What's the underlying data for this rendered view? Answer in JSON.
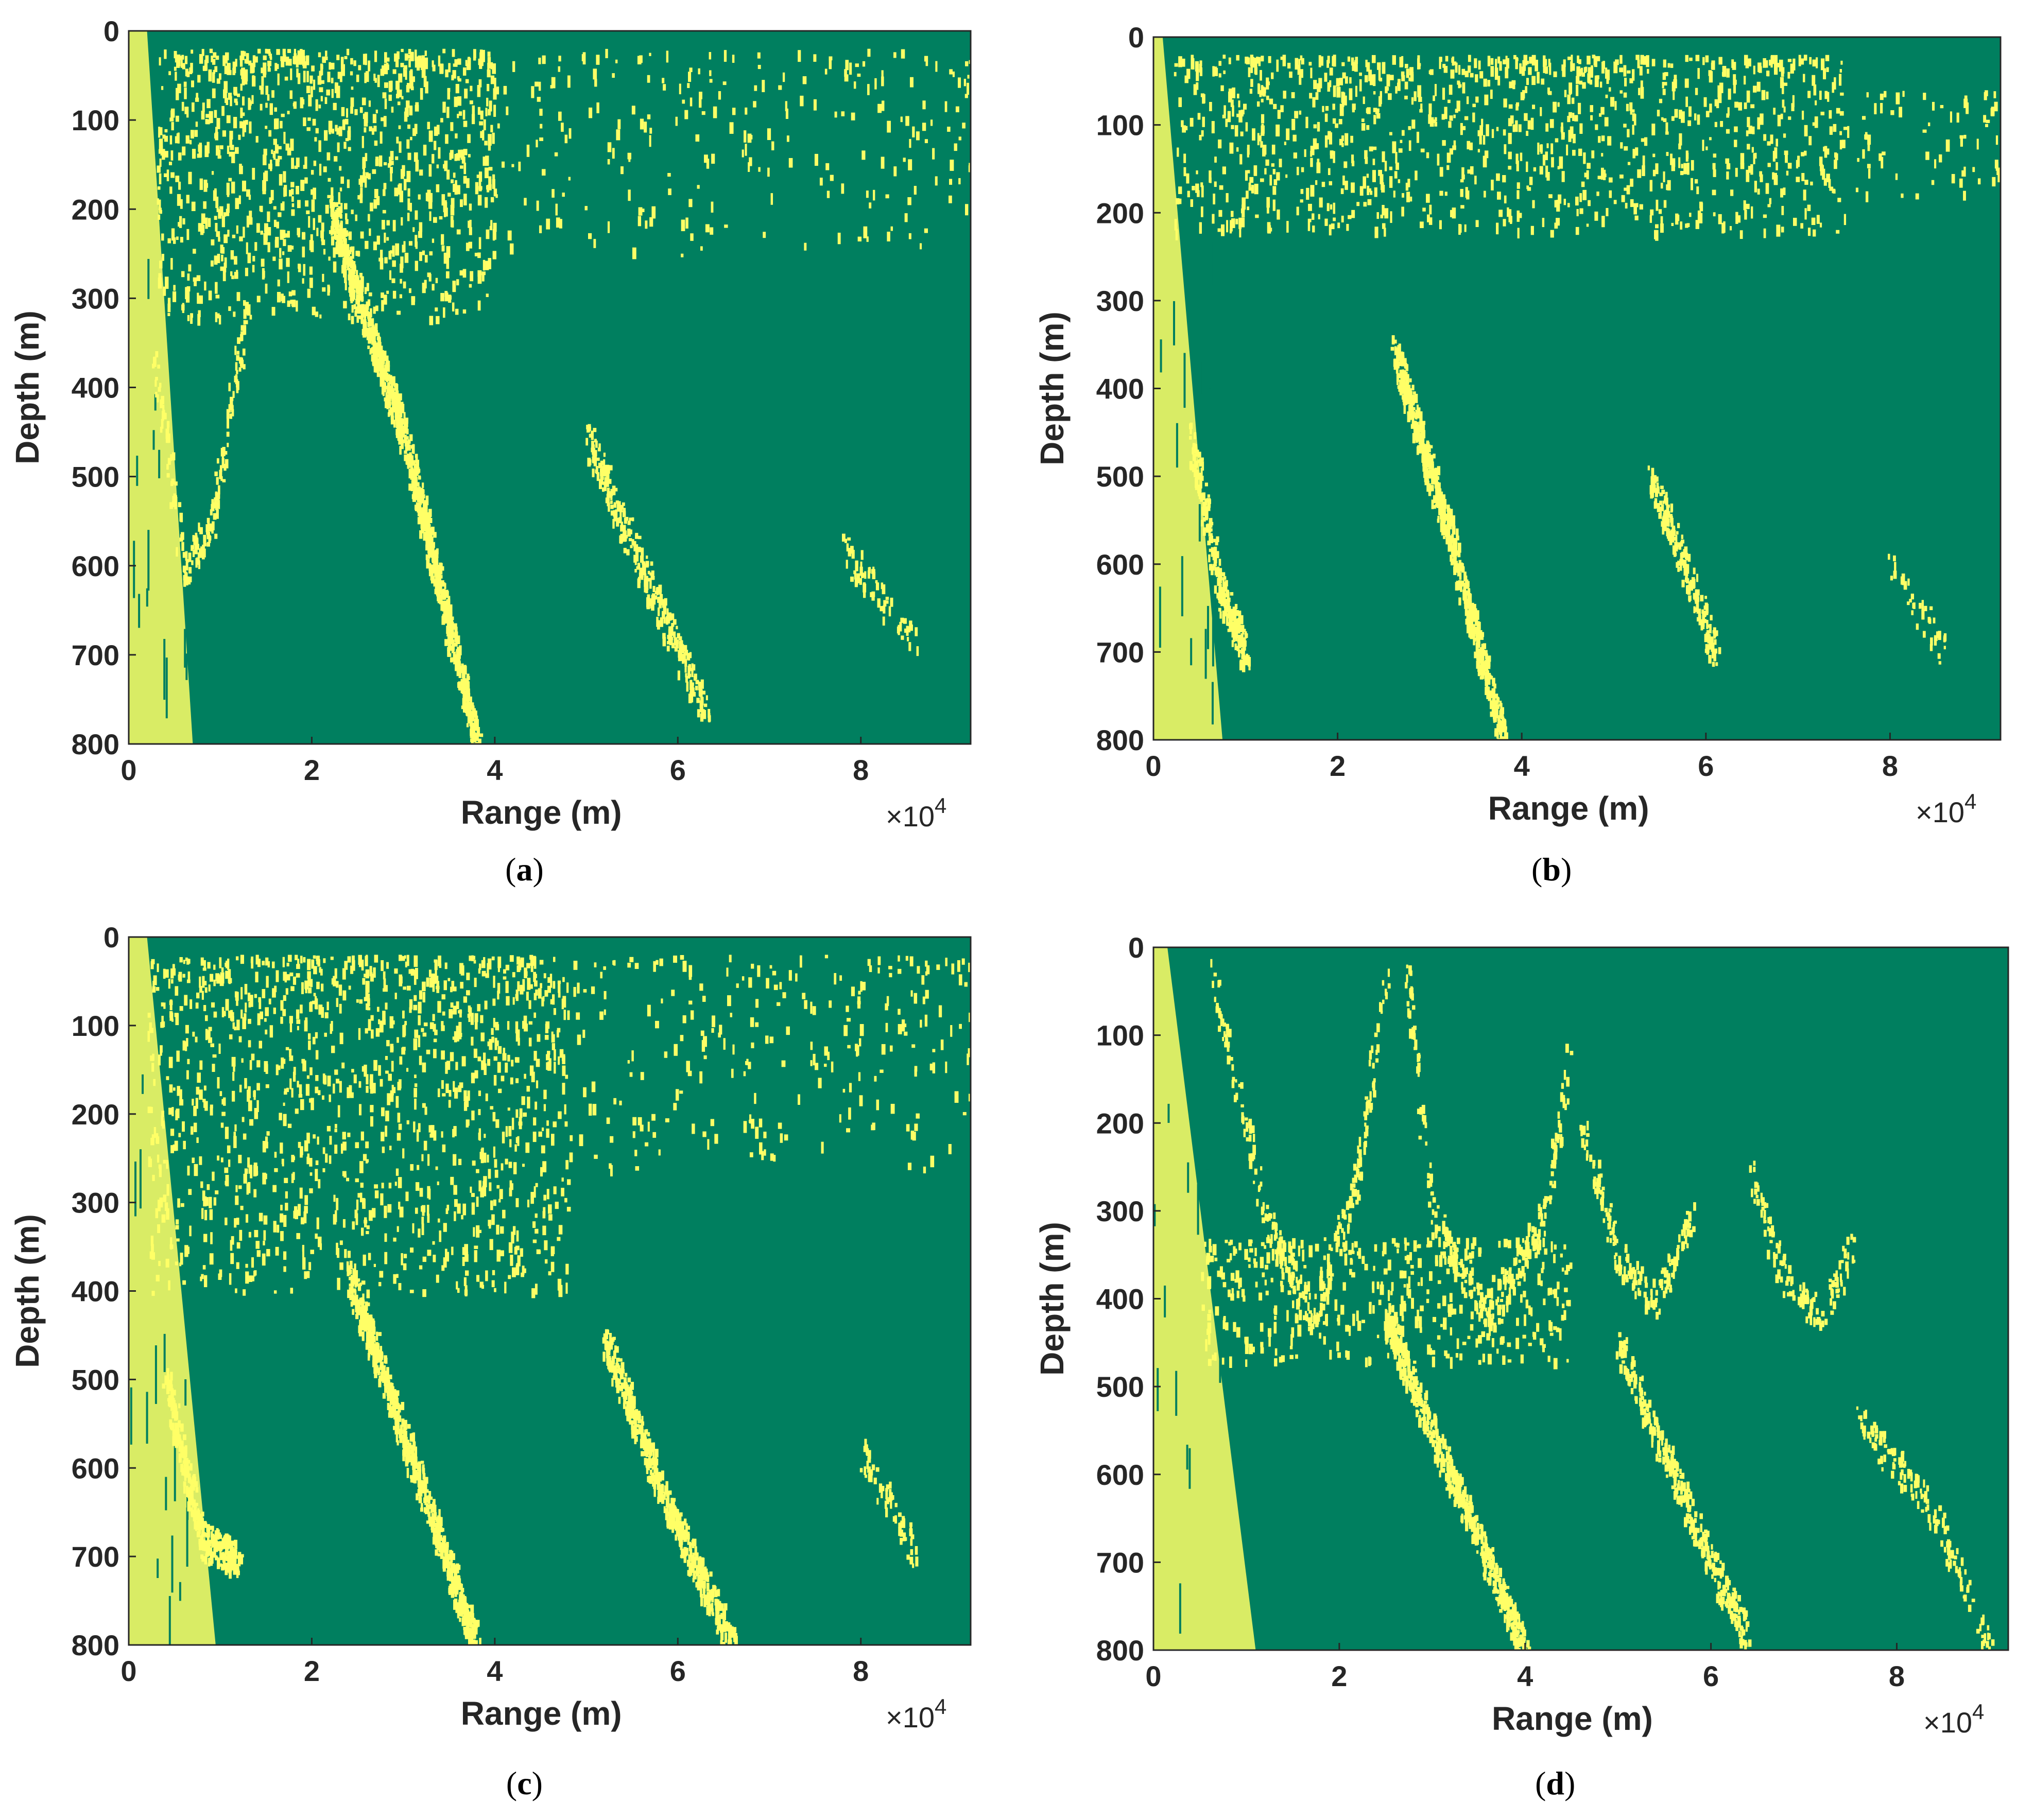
{
  "colors": {
    "background_class": "#007F5F",
    "detected_class": "#FFFF66",
    "axes": "#262626"
  },
  "chart_data": [
    {
      "type": "heatmap",
      "panel_label": "(a)",
      "panel_letter": "a",
      "xlabel": "Range (m)",
      "ylabel": "Depth (m)",
      "x_exponent_label": "×10",
      "x_exponent": "4",
      "xlim": [
        0,
        92000
      ],
      "ylim": [
        0,
        800
      ],
      "y_reversed": true,
      "xticks": [
        0,
        20000,
        40000,
        60000,
        80000
      ],
      "xtick_labels": [
        "0",
        "2",
        "4",
        "6",
        "8"
      ],
      "yticks": [
        0,
        100,
        200,
        300,
        400,
        500,
        600,
        700,
        800
      ],
      "ytick_labels": [
        "0",
        "100",
        "200",
        "300",
        "400",
        "500",
        "600",
        "700",
        "800"
      ],
      "binary_classes": [
        "background",
        "detected"
      ],
      "features": [
        {
          "kind": "band",
          "name": "left-wedge",
          "range": [
            [
              0,
              0
            ],
            [
              2000,
              0
            ],
            [
              7000,
              800
            ],
            [
              0,
              800
            ]
          ],
          "density": 0.7
        },
        {
          "kind": "surface",
          "depth_range": [
            20,
            320
          ],
          "range": [
            3000,
            40000
          ],
          "density": 0.55
        },
        {
          "kind": "surface",
          "depth_range": [
            20,
            250
          ],
          "range": [
            40000,
            92000
          ],
          "density": 0.12
        },
        {
          "kind": "arc",
          "points": [
            [
              2500,
              350
            ],
            [
              6000,
              600
            ],
            [
              9000,
              550
            ],
            [
              13000,
              300
            ]
          ],
          "density": 0.5
        },
        {
          "kind": "line",
          "points": [
            [
              22000,
              200
            ],
            [
              30000,
              450
            ],
            [
              38000,
              800
            ]
          ],
          "density": 0.55
        },
        {
          "kind": "line",
          "points": [
            [
              50000,
              450
            ],
            [
              56000,
              600
            ],
            [
              63000,
              760
            ]
          ],
          "density": 0.3
        },
        {
          "kind": "line",
          "points": [
            [
              78000,
              580
            ],
            [
              86000,
              680
            ]
          ],
          "density": 0.15
        }
      ]
    },
    {
      "type": "heatmap",
      "panel_label": "(b)",
      "panel_letter": "b",
      "xlabel": "Range (m)",
      "ylabel": "Depth (m)",
      "x_exponent_label": "×10",
      "x_exponent": "4",
      "xlim": [
        0,
        92000
      ],
      "ylim": [
        0,
        800
      ],
      "y_reversed": true,
      "xticks": [
        0,
        20000,
        40000,
        60000,
        80000
      ],
      "xtick_labels": [
        "0",
        "2",
        "4",
        "6",
        "8"
      ],
      "yticks": [
        0,
        100,
        200,
        300,
        400,
        500,
        600,
        700,
        800
      ],
      "ytick_labels": [
        "0",
        "100",
        "200",
        "300",
        "400",
        "500",
        "600",
        "700",
        "800"
      ],
      "binary_classes": [
        "background",
        "detected"
      ],
      "features": [
        {
          "kind": "band",
          "name": "left-wedge",
          "range": [
            [
              0,
              0
            ],
            [
              1000,
              0
            ],
            [
              7500,
              800
            ],
            [
              0,
              800
            ]
          ],
          "density": 0.6
        },
        {
          "kind": "surface",
          "depth_range": [
            20,
            220
          ],
          "range": [
            2000,
            75000
          ],
          "density": 0.45
        },
        {
          "kind": "surface",
          "depth_range": [
            60,
            180
          ],
          "range": [
            75000,
            92000
          ],
          "density": 0.2
        },
        {
          "kind": "arc",
          "points": [
            [
              4000,
              450
            ],
            [
              7000,
              620
            ],
            [
              10000,
              700
            ]
          ],
          "density": 0.35
        },
        {
          "kind": "line",
          "points": [
            [
              26000,
              350
            ],
            [
              32000,
              560
            ],
            [
              38000,
              800
            ]
          ],
          "density": 0.5
        },
        {
          "kind": "line",
          "points": [
            [
              54000,
              500
            ],
            [
              58000,
              610
            ],
            [
              61000,
              700
            ]
          ],
          "density": 0.3
        },
        {
          "kind": "line",
          "points": [
            [
              80000,
              600
            ],
            [
              86000,
              700
            ]
          ],
          "density": 0.1
        }
      ]
    },
    {
      "type": "heatmap",
      "panel_label": "(c)",
      "panel_letter": "c",
      "xlabel": "Range (m)",
      "ylabel": "Depth (m)",
      "x_exponent_label": "×10",
      "x_exponent": "4",
      "xlim": [
        0,
        92000
      ],
      "ylim": [
        0,
        800
      ],
      "y_reversed": true,
      "xticks": [
        0,
        20000,
        40000,
        60000,
        80000
      ],
      "xtick_labels": [
        "0",
        "2",
        "4",
        "6",
        "8"
      ],
      "yticks": [
        0,
        100,
        200,
        300,
        400,
        500,
        600,
        700,
        800
      ],
      "ytick_labels": [
        "0",
        "100",
        "200",
        "300",
        "400",
        "500",
        "600",
        "700",
        "800"
      ],
      "binary_classes": [
        "background",
        "detected"
      ],
      "features": [
        {
          "kind": "band",
          "name": "left-wedge",
          "range": [
            [
              0,
              0
            ],
            [
              2000,
              0
            ],
            [
              9500,
              800
            ],
            [
              0,
              800
            ]
          ],
          "density": 0.65
        },
        {
          "kind": "surface",
          "depth_range": [
            20,
            400
          ],
          "range": [
            2000,
            48000
          ],
          "density": 0.42
        },
        {
          "kind": "surface",
          "depth_range": [
            20,
            260
          ],
          "range": [
            48000,
            92000
          ],
          "density": 0.14
        },
        {
          "kind": "arc",
          "points": [
            [
              4000,
              500
            ],
            [
              8000,
              680
            ],
            [
              12000,
              700
            ]
          ],
          "density": 0.5
        },
        {
          "kind": "line",
          "points": [
            [
              24000,
              380
            ],
            [
              30000,
              560
            ],
            [
              38000,
              800
            ]
          ],
          "density": 0.5
        },
        {
          "kind": "line",
          "points": [
            [
              52000,
              450
            ],
            [
              58000,
              620
            ],
            [
              66000,
              800
            ]
          ],
          "density": 0.45
        },
        {
          "kind": "line",
          "points": [
            [
              80000,
              580
            ],
            [
              86000,
              700
            ]
          ],
          "density": 0.15
        }
      ]
    },
    {
      "type": "heatmap",
      "panel_label": "(d)",
      "panel_letter": "d",
      "xlabel": "Range (m)",
      "ylabel": "Depth (m)",
      "x_exponent_label": "×10",
      "x_exponent": "4",
      "xlim": [
        0,
        92000
      ],
      "ylim": [
        0,
        800
      ],
      "y_reversed": true,
      "xticks": [
        0,
        20000,
        40000,
        60000,
        80000
      ],
      "xtick_labels": [
        "0",
        "2",
        "4",
        "6",
        "8"
      ],
      "yticks": [
        0,
        100,
        200,
        300,
        400,
        500,
        600,
        700,
        800
      ],
      "ytick_labels": [
        "0",
        "100",
        "200",
        "300",
        "400",
        "500",
        "600",
        "700",
        "800"
      ],
      "binary_classes": [
        "background",
        "detected"
      ],
      "features": [
        {
          "kind": "band",
          "name": "left-wedge",
          "range": [
            [
              0,
              0
            ],
            [
              1500,
              0
            ],
            [
              11000,
              800
            ],
            [
              0,
              800
            ]
          ],
          "density": 0.6
        },
        {
          "kind": "arc",
          "points": [
            [
              6000,
              20
            ],
            [
              12000,
              300
            ],
            [
              17000,
              420
            ],
            [
              22000,
              250
            ],
            [
              25000,
              20
            ]
          ],
          "density": 0.55
        },
        {
          "kind": "arc",
          "points": [
            [
              27000,
              20
            ],
            [
              30000,
              300
            ],
            [
              36000,
              420
            ],
            [
              42000,
              300
            ],
            [
              45000,
              100
            ]
          ],
          "density": 0.4
        },
        {
          "kind": "arc",
          "points": [
            [
              46000,
              200
            ],
            [
              50000,
              350
            ],
            [
              54000,
              400
            ],
            [
              58000,
              300
            ]
          ],
          "density": 0.3
        },
        {
          "kind": "arc",
          "points": [
            [
              64000,
              250
            ],
            [
              68000,
              380
            ],
            [
              72000,
              420
            ],
            [
              75000,
              340
            ]
          ],
          "density": 0.25
        },
        {
          "kind": "surface",
          "depth_range": [
            330,
            470
          ],
          "range": [
            5000,
            45000
          ],
          "density": 0.45
        },
        {
          "kind": "line",
          "points": [
            [
              25000,
              420
            ],
            [
              32000,
              600
            ],
            [
              40000,
              800
            ]
          ],
          "density": 0.45
        },
        {
          "kind": "line",
          "points": [
            [
              50000,
              450
            ],
            [
              58000,
              650
            ],
            [
              64000,
              790
            ]
          ],
          "density": 0.3
        },
        {
          "kind": "line",
          "points": [
            [
              76000,
              540
            ],
            [
              84000,
              640
            ],
            [
              90000,
              800
            ]
          ],
          "density": 0.15
        }
      ]
    }
  ]
}
